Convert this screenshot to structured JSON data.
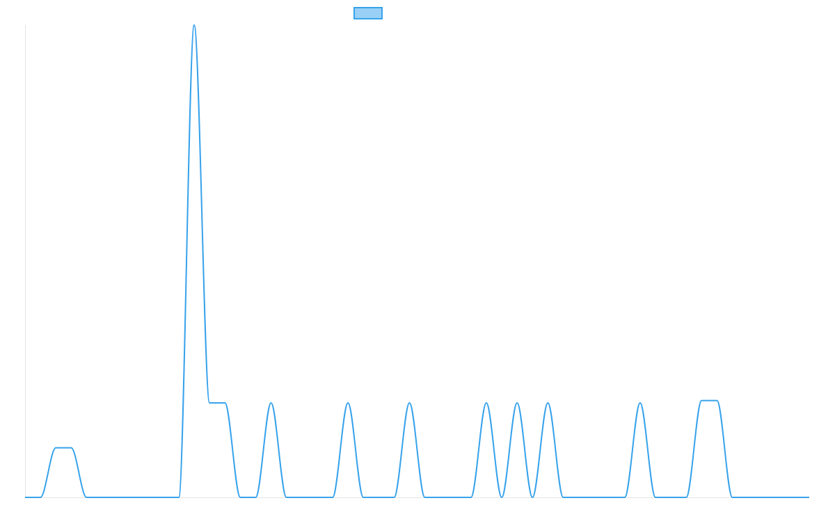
{
  "chart_data": {
    "type": "line",
    "title": "",
    "xlabel": "",
    "ylabel": "",
    "legend": {
      "position": "top",
      "series_name": ""
    },
    "colors": {
      "line": "#36a2eb",
      "fill": "#9ad0f5",
      "axis": "#e5e5e5"
    },
    "grid": false,
    "ylim": [
      0,
      1
    ],
    "series": [
      {
        "name": "",
        "x": [
          0,
          1,
          2,
          3,
          4,
          5,
          6,
          7,
          8,
          9,
          10,
          11,
          12,
          13,
          14,
          15,
          16,
          17,
          18,
          19,
          20,
          21,
          22,
          23,
          24,
          25,
          26,
          27,
          28,
          29,
          30,
          31,
          32,
          33,
          34,
          35,
          36,
          37,
          38,
          39,
          40,
          41,
          42,
          43,
          44,
          45,
          46,
          47,
          48,
          49,
          50,
          51
        ],
        "values": [
          0,
          0,
          0.105,
          0.105,
          0,
          0,
          0,
          0,
          0,
          0,
          0,
          1,
          0.2,
          0.2,
          0,
          0,
          0.2,
          0,
          0,
          0,
          0,
          0.2,
          0,
          0,
          0,
          0.2,
          0,
          0,
          0,
          0,
          0.2,
          0,
          0.2,
          0,
          0.2,
          0,
          0,
          0,
          0,
          0,
          0.2,
          0,
          0,
          0,
          0.205,
          0.205,
          0,
          0,
          0,
          0,
          0,
          0
        ]
      }
    ]
  }
}
